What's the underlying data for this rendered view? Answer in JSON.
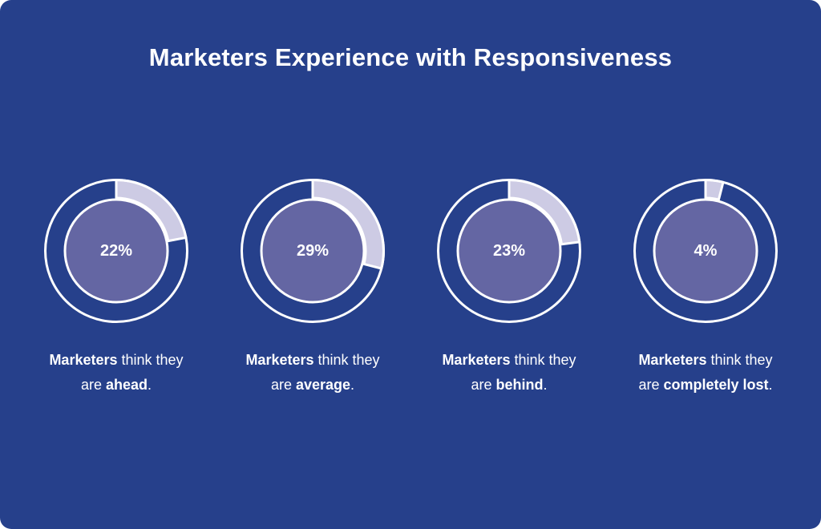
{
  "colors": {
    "background": "#26408b",
    "ring_stroke": "#ffffff",
    "highlight_segment": "#cdcbe4",
    "inner_circle": "#6466a3"
  },
  "chart_data": {
    "type": "pie",
    "title": "Marketers Experience with Responsiveness",
    "charts": [
      {
        "value": 22,
        "label": "22%",
        "caption": {
          "subject": "Marketers",
          "verb": "think they",
          "prefix": "are",
          "status": "ahead",
          "suffix": "."
        }
      },
      {
        "value": 29,
        "label": "29%",
        "caption": {
          "subject": "Marketers",
          "verb": "think they",
          "prefix": "are",
          "status": "average",
          "suffix": "."
        }
      },
      {
        "value": 23,
        "label": "23%",
        "caption": {
          "subject": "Marketers",
          "verb": "think they",
          "prefix": "are",
          "status": "behind",
          "suffix": "."
        }
      },
      {
        "value": 4,
        "label": "4%",
        "caption": {
          "subject": "Marketers",
          "verb": "think they",
          "prefix": "are",
          "status": "completely lost",
          "suffix": "."
        }
      }
    ]
  }
}
